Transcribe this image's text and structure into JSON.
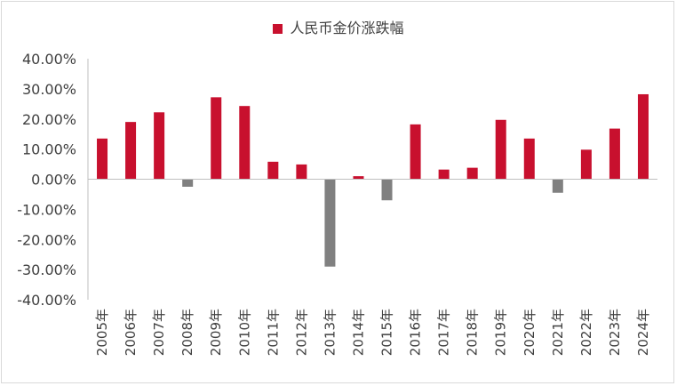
{
  "chart_data": {
    "type": "bar",
    "legend": "人民币金价涨跌幅",
    "legend_position": "top-center",
    "categories": [
      "2005年",
      "2006年",
      "2007年",
      "2008年",
      "2009年",
      "2010年",
      "2011年",
      "2012年",
      "2013年",
      "2014年",
      "2015年",
      "2016年",
      "2017年",
      "2018年",
      "2019年",
      "2020年",
      "2021年",
      "2022年",
      "2023年",
      "2024年"
    ],
    "values": [
      13.5,
      19.0,
      22.2,
      -2.5,
      27.2,
      24.3,
      5.8,
      4.9,
      -29.0,
      1.0,
      -7.0,
      18.2,
      3.2,
      3.8,
      19.7,
      13.5,
      -4.5,
      9.8,
      16.8,
      28.2
    ],
    "ylim": [
      -40,
      40
    ],
    "yticks": [
      "-40.00%",
      "-30.00%",
      "-20.00%",
      "-10.00%",
      "0.00%",
      "10.00%",
      "20.00%",
      "30.00%",
      "40.00%"
    ],
    "grid": false,
    "colors": {
      "positive": "#c8102e",
      "negative": "#808080",
      "axis": "#bfbfbf",
      "text": "#404040"
    }
  }
}
